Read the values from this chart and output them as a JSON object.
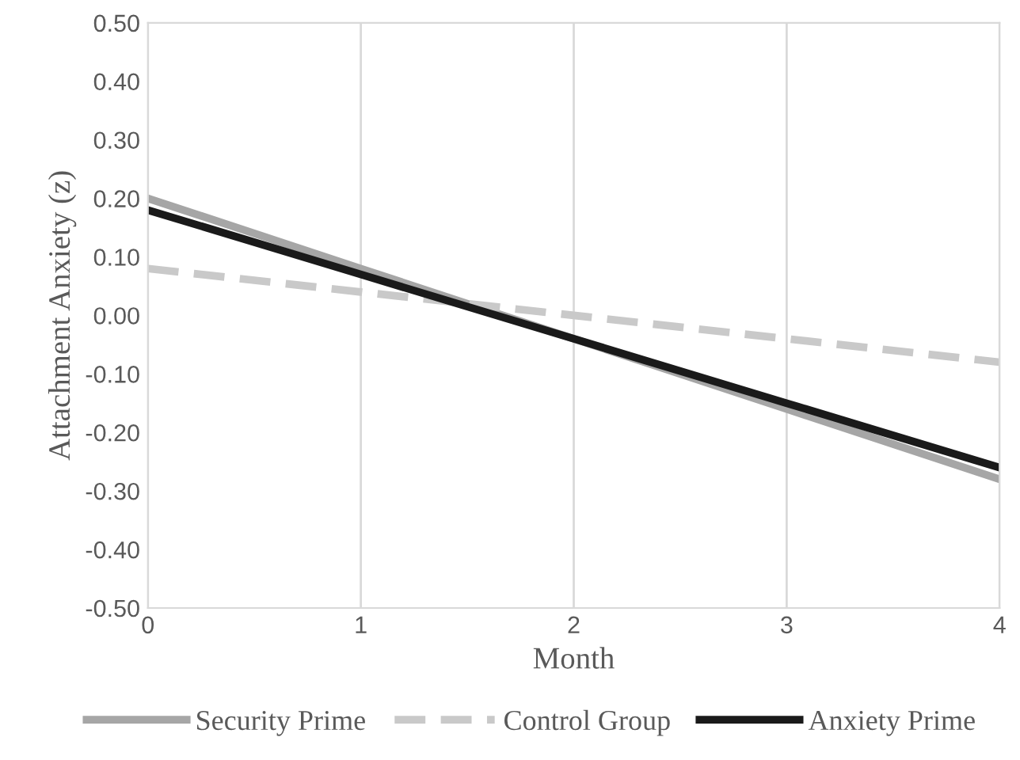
{
  "chart_data": {
    "type": "line",
    "xlabel": "Month",
    "ylabel": "Attachment Anxiety (z)",
    "x": [
      0,
      1,
      2,
      3,
      4
    ],
    "series": [
      {
        "name": "Security Prime",
        "color": "#a6a6a6",
        "line_style": "solid",
        "values": [
          0.2,
          0.08,
          -0.04,
          -0.16,
          -0.28
        ]
      },
      {
        "name": "Control Group",
        "color": "#c9c9c9",
        "line_style": "dashed",
        "values": [
          0.08,
          0.04,
          0.0,
          -0.04,
          -0.08
        ]
      },
      {
        "name": "Anxiety Prime",
        "color": "#1a1a1a",
        "line_style": "solid",
        "values": [
          0.18,
          0.07,
          -0.04,
          -0.15,
          -0.26
        ]
      }
    ],
    "xlim": [
      0,
      4
    ],
    "xticks": [
      0,
      1,
      2,
      3,
      4
    ],
    "ylim": [
      -0.5,
      0.5
    ],
    "yticks": [
      {
        "value": -0.5,
        "label": "-0.50"
      },
      {
        "value": -0.4,
        "label": "-0.40"
      },
      {
        "value": -0.3,
        "label": "-0.30"
      },
      {
        "value": -0.2,
        "label": "-0.20"
      },
      {
        "value": -0.1,
        "label": "-0.10"
      },
      {
        "value": 0,
        "label": "0.00"
      },
      {
        "value": 0.1,
        "label": "0.10"
      },
      {
        "value": 0.2,
        "label": "0.20"
      },
      {
        "value": 0.3,
        "label": "0.30"
      },
      {
        "value": 0.4,
        "label": "0.40"
      },
      {
        "value": 0.5,
        "label": "0.50"
      }
    ],
    "grid": "x",
    "legend": "bottom",
    "marker": "none"
  }
}
